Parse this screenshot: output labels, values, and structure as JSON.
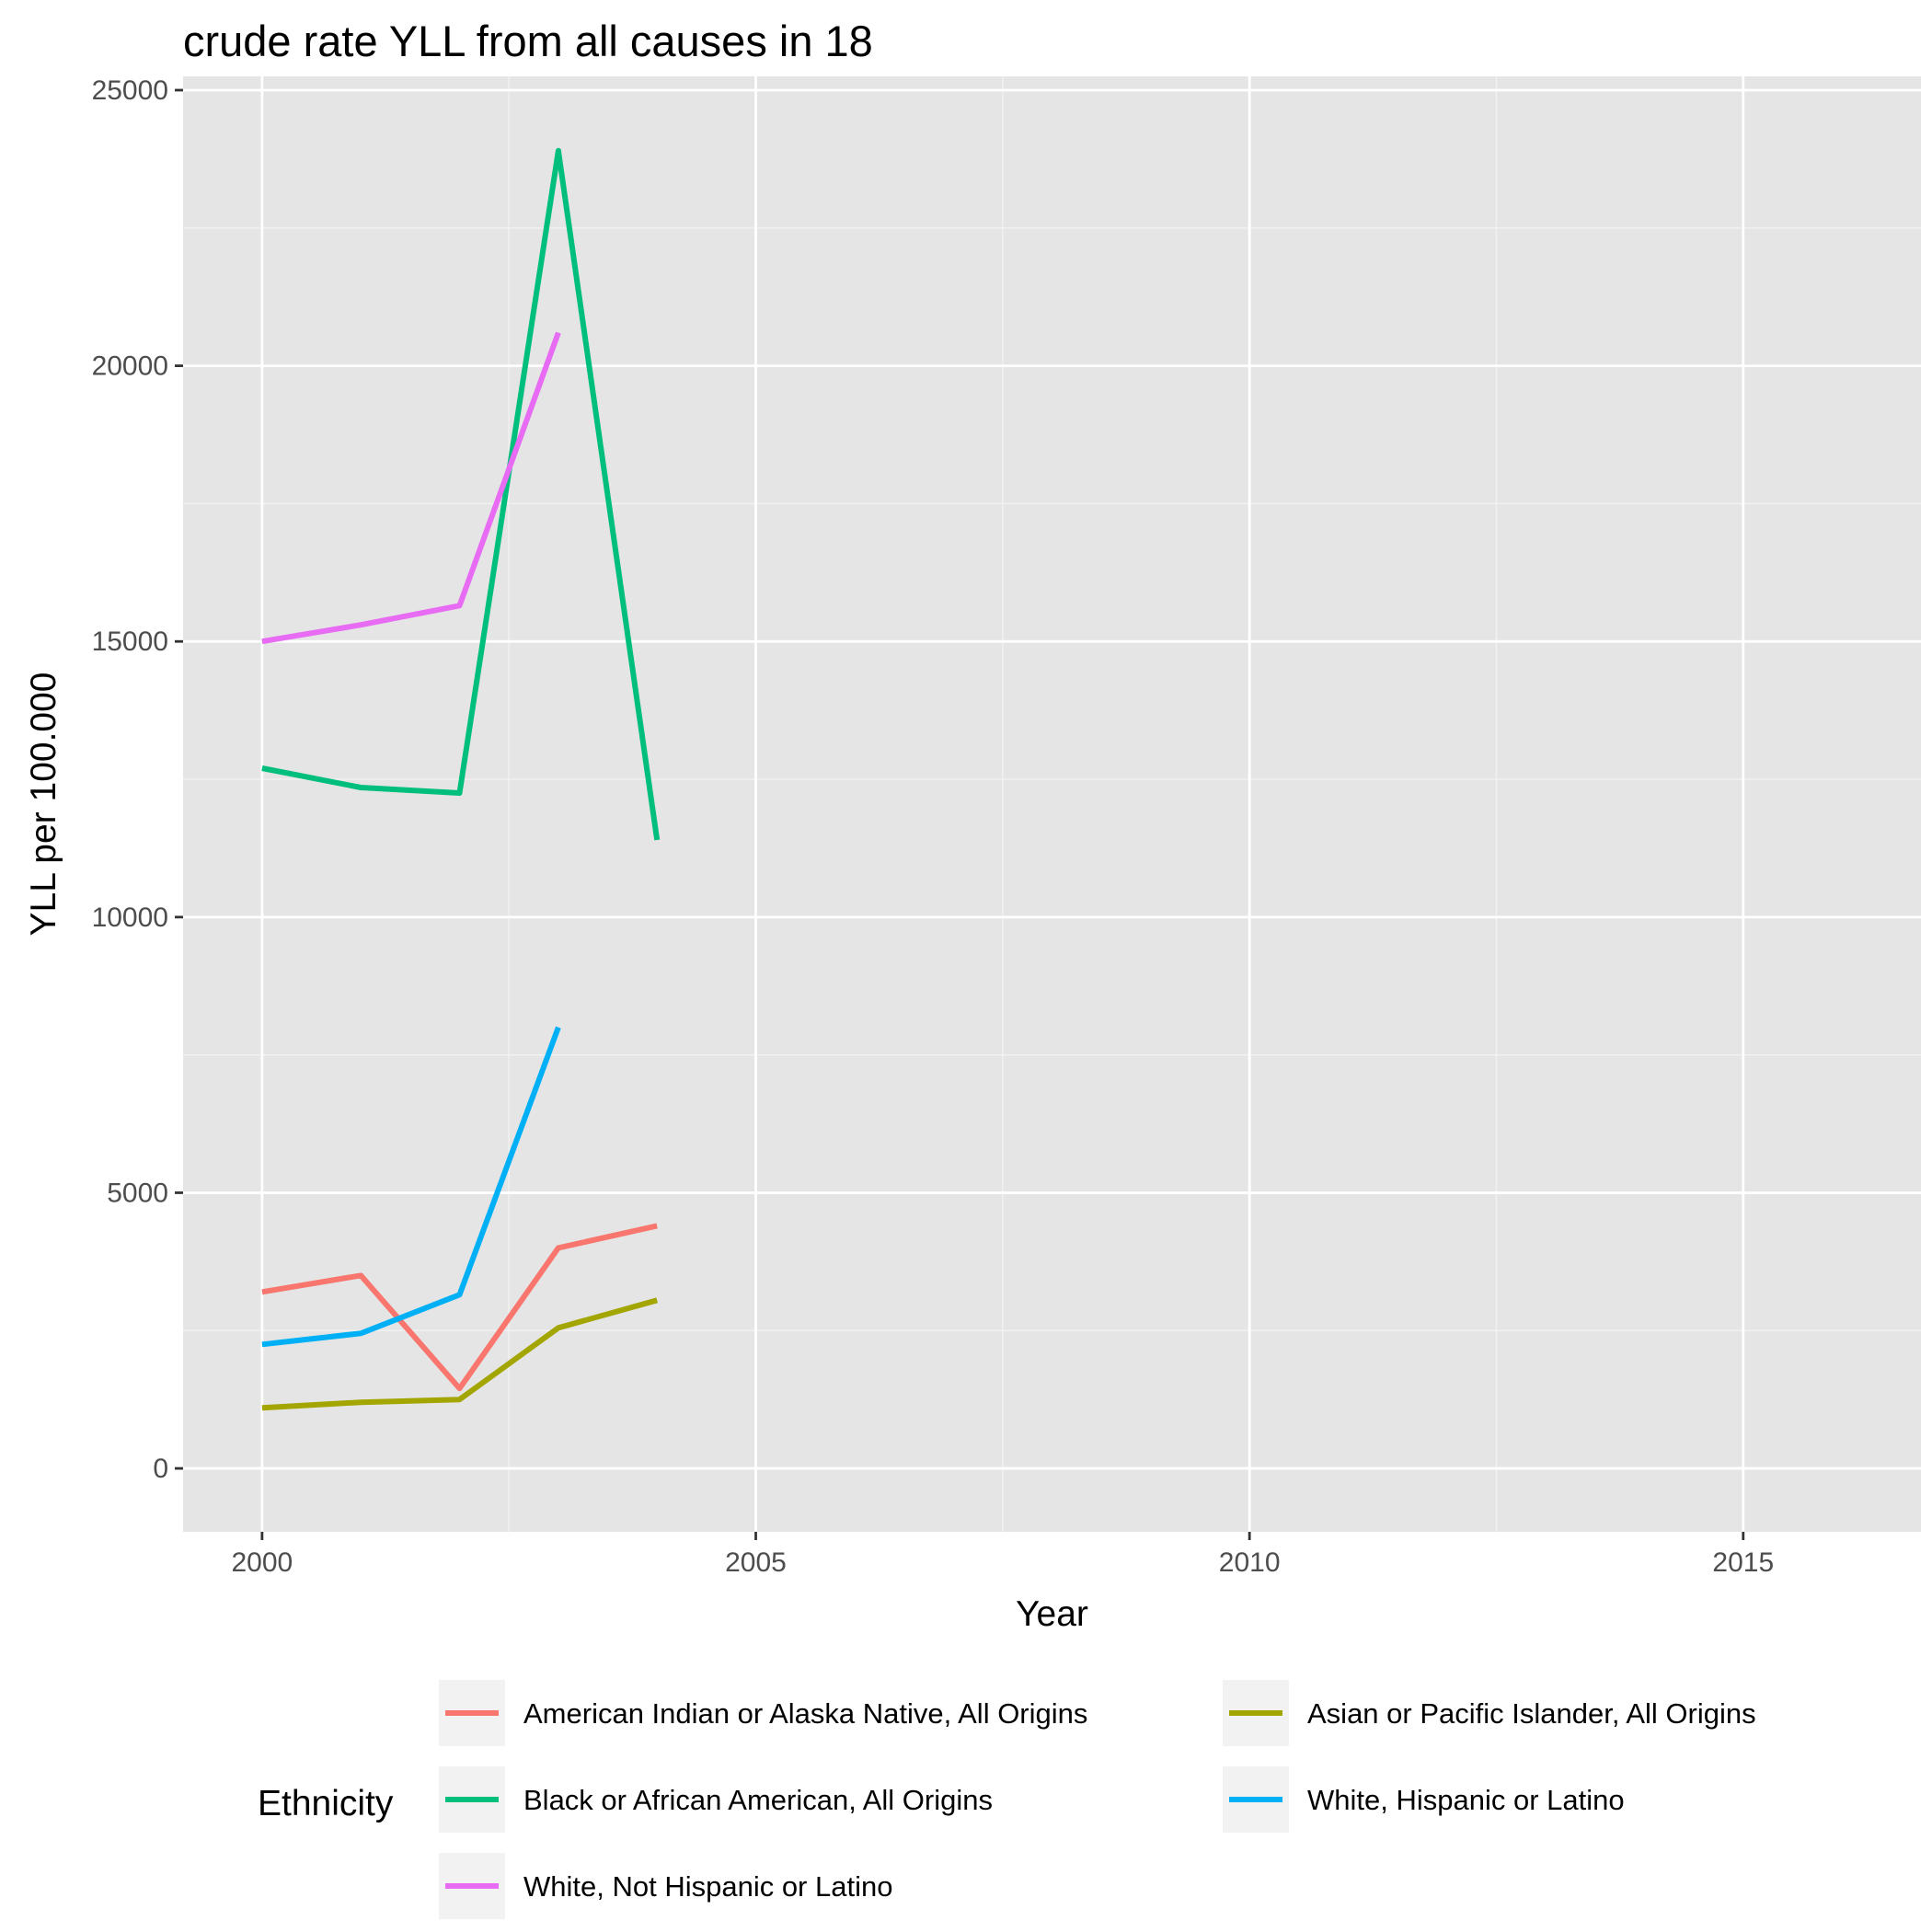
{
  "chart_data": {
    "type": "line",
    "title": "crude rate YLL from all causes in 18",
    "xlabel": "Year",
    "ylabel": "YLL per 100.000",
    "xlim": [
      1999.2,
      2016.8
    ],
    "ylim": [
      -1150,
      25250
    ],
    "x_ticks": [
      2000,
      2005,
      2010,
      2015
    ],
    "x_tick_labels": [
      "2000",
      "2005",
      "2010",
      "2015"
    ],
    "y_ticks": [
      0,
      5000,
      10000,
      15000,
      20000,
      25000
    ],
    "y_tick_labels": [
      "0",
      "5000",
      "10000",
      "15000",
      "20000",
      "25000"
    ],
    "grid": true,
    "panel_background": "#e5e5e5",
    "legend": {
      "title": "Ethnicity",
      "position": "bottom"
    },
    "series": [
      {
        "name": "American Indian or Alaska Native, All Origins",
        "color": "#f8766d",
        "x": [
          2000,
          2001,
          2002,
          2003,
          2004
        ],
        "y": [
          3200,
          3500,
          1450,
          4000,
          4400
        ]
      },
      {
        "name": "Asian or Pacific Islander, All Origins",
        "color": "#a3a500",
        "x": [
          2000,
          2001,
          2002,
          2003,
          2004
        ],
        "y": [
          1100,
          1200,
          1250,
          2550,
          3050
        ]
      },
      {
        "name": "Black or African American, All Origins",
        "color": "#00bf7d",
        "x": [
          2000,
          2001,
          2002,
          2003,
          2004
        ],
        "y": [
          12700,
          12350,
          12250,
          23900,
          11400
        ]
      },
      {
        "name": "White, Hispanic or Latino",
        "color": "#00b0f6",
        "x": [
          2000,
          2001,
          2002,
          2003
        ],
        "y": [
          2250,
          2450,
          3150,
          8000
        ]
      },
      {
        "name": "White, Not Hispanic or Latino",
        "color": "#e76bf3",
        "x": [
          2000,
          2001,
          2002,
          2003
        ],
        "y": [
          15000,
          15300,
          15650,
          20600
        ]
      }
    ]
  }
}
